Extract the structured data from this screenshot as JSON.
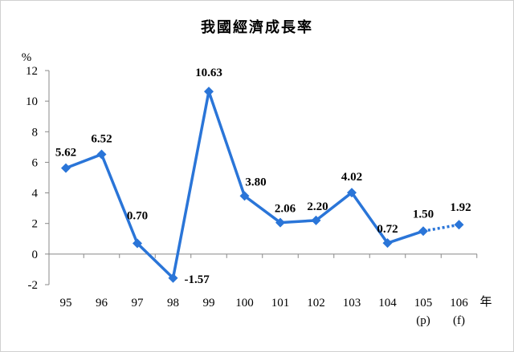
{
  "chart_data": {
    "type": "line",
    "title": "我國經濟成長率",
    "ylabel": "%",
    "xlabel": "年",
    "ylim": [
      -2,
      12
    ],
    "yticks": [
      -2,
      0,
      2,
      4,
      6,
      8,
      10,
      12
    ],
    "categories": [
      "95",
      "96",
      "97",
      "98",
      "99",
      "100",
      "101",
      "102",
      "103",
      "104",
      "105",
      "106"
    ],
    "sublabels": [
      "",
      "",
      "",
      "",
      "",
      "",
      "",
      "",
      "",
      "",
      "(p)",
      "(f)"
    ],
    "values": [
      5.62,
      6.52,
      0.7,
      -1.57,
      10.63,
      3.8,
      2.06,
      2.2,
      4.02,
      0.72,
      1.5,
      1.92
    ],
    "data_labels": [
      "5.62",
      "6.52",
      "0.70",
      "-1.57",
      "10.63",
      "3.80",
      "2.06",
      "2.20",
      "4.02",
      "0.72",
      "1.50",
      "1.92"
    ],
    "forecast_segment": "dotted",
    "color": "#2a75d8",
    "grid": false,
    "legend": "none"
  }
}
